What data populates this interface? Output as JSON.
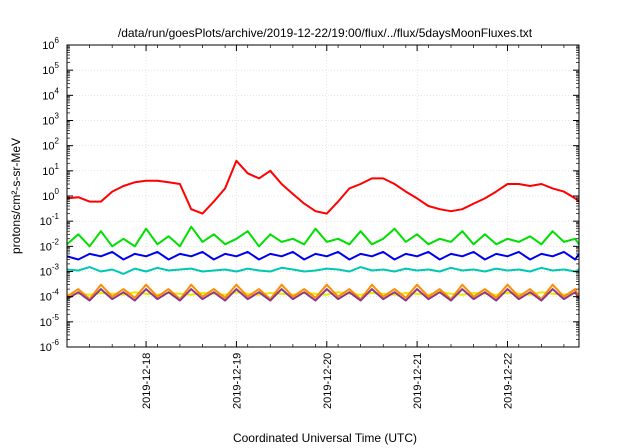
{
  "chart_data": {
    "type": "line",
    "title": "/data/run/goesPlots/archive/2019-12-22/19:00/flux/../flux/5daysMoonFluxes.txt",
    "xlabel": "Coordinated Universal Time (UTC)",
    "ylabel": "protons/cm²-s-sr-MeV",
    "ylog": true,
    "grid": true,
    "y_tick_labels": [
      {
        "exp": -6,
        "label": "10",
        "sup": "-6"
      },
      {
        "exp": -5,
        "label": "10",
        "sup": "-5"
      },
      {
        "exp": -4,
        "label": "10",
        "sup": "-4"
      },
      {
        "exp": -3,
        "label": "10",
        "sup": "-3"
      },
      {
        "exp": -2,
        "label": "10",
        "sup": "-2"
      },
      {
        "exp": -1,
        "label": "10",
        "sup": "-1"
      },
      {
        "exp": 0,
        "label": "10",
        "sup": "0"
      },
      {
        "exp": 1,
        "label": "10",
        "sup": "1"
      },
      {
        "exp": 2,
        "label": "10",
        "sup": "2"
      },
      {
        "exp": 3,
        "label": "10",
        "sup": "3"
      },
      {
        "exp": 4,
        "label": "10",
        "sup": "4"
      },
      {
        "exp": 5,
        "label": "10",
        "sup": "5"
      },
      {
        "exp": 6,
        "label": "10",
        "sup": "6"
      }
    ],
    "x_ticks": [
      "2019-12-18",
      "2019-12-19",
      "2019-12-20",
      "2019-12-21",
      "2019-12-22"
    ],
    "x_domain": [
      "2019-12-17T03:00",
      "2019-12-22T19:00"
    ],
    "ylim": [
      1e-06,
      1000000.0
    ],
    "x": [
      "2019-12-17T03:00",
      "2019-12-17T06:00",
      "2019-12-17T09:00",
      "2019-12-17T12:00",
      "2019-12-17T15:00",
      "2019-12-17T18:00",
      "2019-12-17T21:00",
      "2019-12-18T00:00",
      "2019-12-18T03:00",
      "2019-12-18T06:00",
      "2019-12-18T09:00",
      "2019-12-18T12:00",
      "2019-12-18T15:00",
      "2019-12-18T18:00",
      "2019-12-18T21:00",
      "2019-12-19T00:00",
      "2019-12-19T03:00",
      "2019-12-19T06:00",
      "2019-12-19T09:00",
      "2019-12-19T12:00",
      "2019-12-19T15:00",
      "2019-12-19T18:00",
      "2019-12-19T21:00",
      "2019-12-20T00:00",
      "2019-12-20T03:00",
      "2019-12-20T06:00",
      "2019-12-20T09:00",
      "2019-12-20T12:00",
      "2019-12-20T15:00",
      "2019-12-20T18:00",
      "2019-12-20T21:00",
      "2019-12-21T00:00",
      "2019-12-21T03:00",
      "2019-12-21T06:00",
      "2019-12-21T09:00",
      "2019-12-21T12:00",
      "2019-12-21T15:00",
      "2019-12-21T18:00",
      "2019-12-21T21:00",
      "2019-12-22T00:00",
      "2019-12-22T03:00",
      "2019-12-22T06:00",
      "2019-12-22T09:00",
      "2019-12-22T12:00",
      "2019-12-22T15:00",
      "2019-12-22T18:00",
      "2019-12-22T19:00"
    ],
    "series": [
      {
        "color": "#ff0000",
        "values": [
          0.8,
          0.9,
          0.6,
          0.6,
          1.5,
          2.5,
          3.5,
          4,
          4,
          3.5,
          3,
          0.3,
          0.2,
          0.6,
          2,
          25,
          8,
          5,
          10,
          3,
          1.2,
          0.5,
          0.25,
          0.2,
          0.6,
          2,
          3,
          5,
          5,
          3,
          1.5,
          0.8,
          0.4,
          0.3,
          0.25,
          0.3,
          0.5,
          0.8,
          1.5,
          3,
          3,
          2.5,
          3,
          2,
          1.5,
          0.8,
          0.6
        ]
      },
      {
        "color": "#00e000",
        "values": [
          0.012,
          0.03,
          0.01,
          0.04,
          0.01,
          0.02,
          0.01,
          0.05,
          0.012,
          0.025,
          0.01,
          0.06,
          0.015,
          0.03,
          0.012,
          0.02,
          0.04,
          0.01,
          0.03,
          0.015,
          0.02,
          0.012,
          0.05,
          0.015,
          0.02,
          0.012,
          0.04,
          0.012,
          0.02,
          0.05,
          0.015,
          0.03,
          0.012,
          0.02,
          0.015,
          0.04,
          0.012,
          0.03,
          0.012,
          0.02,
          0.015,
          0.025,
          0.012,
          0.04,
          0.015,
          0.02,
          0.012
        ]
      },
      {
        "color": "#0000ee",
        "values": [
          0.004,
          0.003,
          0.005,
          0.004,
          0.006,
          0.003,
          0.005,
          0.004,
          0.006,
          0.003,
          0.005,
          0.004,
          0.006,
          0.003,
          0.005,
          0.004,
          0.006,
          0.003,
          0.005,
          0.004,
          0.006,
          0.003,
          0.005,
          0.004,
          0.006,
          0.003,
          0.005,
          0.004,
          0.006,
          0.003,
          0.005,
          0.004,
          0.006,
          0.003,
          0.005,
          0.004,
          0.006,
          0.003,
          0.005,
          0.004,
          0.006,
          0.003,
          0.005,
          0.004,
          0.006,
          0.003,
          0.005
        ]
      },
      {
        "color": "#00c8b0",
        "values": [
          0.0012,
          0.0011,
          0.0015,
          0.001,
          0.0012,
          0.0008,
          0.0013,
          0.001,
          0.0014,
          0.0011,
          0.0012,
          0.0013,
          0.001,
          0.0011,
          0.0012,
          0.001,
          0.0013,
          0.0011,
          0.001,
          0.0014,
          0.0012,
          0.001,
          0.0011,
          0.0013,
          0.0012,
          0.001,
          0.0015,
          0.0011,
          0.0012,
          0.001,
          0.0013,
          0.0011,
          0.0012,
          0.001,
          0.0014,
          0.0011,
          0.0012,
          0.001,
          0.0013,
          0.0011,
          0.0012,
          0.001,
          0.0014,
          0.0011,
          0.0012,
          0.001,
          0.0012
        ]
      },
      {
        "color": "#e8e800",
        "values": [
          0.00012,
          0.00013,
          0.00012,
          0.00014,
          0.00013,
          0.00012,
          0.00015,
          0.00013,
          0.00012,
          0.00014,
          0.00013,
          0.00012,
          0.00014,
          0.00013,
          0.00012,
          0.00015,
          0.00013,
          0.00012,
          0.00014,
          0.00013,
          0.00012,
          0.00014,
          0.00013,
          0.00012,
          0.00015,
          0.00013,
          0.00012,
          0.00014,
          0.00013,
          0.00012,
          0.00014,
          0.00013,
          0.00012,
          0.00015,
          0.00013,
          0.00012,
          0.00014,
          0.00013,
          0.00012,
          0.00014,
          0.00013,
          0.00012,
          0.00015,
          0.00013,
          0.00012,
          0.00014,
          0.00013
        ]
      },
      {
        "color": "#ff8c00",
        "values": [
          0.0001,
          0.0002,
          8e-05,
          0.0003,
          0.0001,
          0.0002,
          9e-05,
          0.0003,
          0.0001,
          0.0002,
          8e-05,
          0.0003,
          0.0001,
          0.0002,
          9e-05,
          0.0003,
          0.0001,
          0.0002,
          8e-05,
          0.0003,
          0.0001,
          0.0002,
          9e-05,
          0.0003,
          0.0001,
          0.0002,
          8e-05,
          0.0003,
          0.0001,
          0.0002,
          9e-05,
          0.0003,
          0.0001,
          0.0002,
          8e-05,
          0.0003,
          0.0001,
          0.0002,
          9e-05,
          0.0003,
          0.0001,
          0.0002,
          8e-05,
          0.0003,
          0.0001,
          0.0002,
          0.0001
        ]
      },
      {
        "color": "#8b3a8b",
        "values": [
          8e-05,
          0.00015,
          7e-05,
          0.0002,
          8e-05,
          0.00015,
          7e-05,
          0.0002,
          8e-05,
          0.00015,
          7e-05,
          0.0002,
          8e-05,
          0.00015,
          7e-05,
          0.0002,
          8e-05,
          0.00015,
          7e-05,
          0.0002,
          8e-05,
          0.00015,
          7e-05,
          0.0002,
          8e-05,
          0.00015,
          7e-05,
          0.0002,
          8e-05,
          0.00015,
          7e-05,
          0.0002,
          8e-05,
          0.00015,
          7e-05,
          0.0002,
          8e-05,
          0.00015,
          7e-05,
          0.0002,
          8e-05,
          0.00015,
          7e-05,
          0.0002,
          8e-05,
          0.00015,
          8e-05
        ]
      }
    ]
  }
}
